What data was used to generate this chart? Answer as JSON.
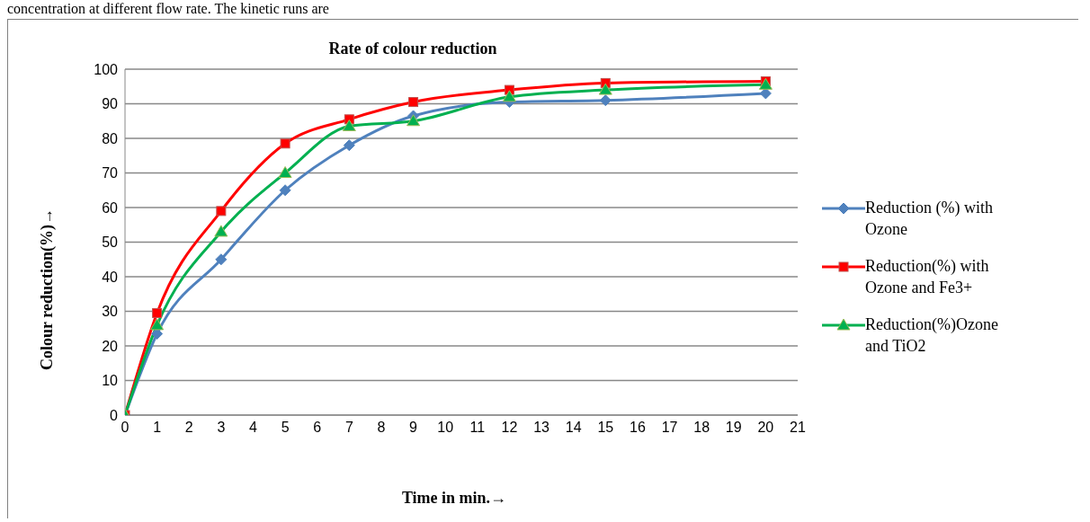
{
  "chart_data": {
    "type": "line",
    "title": "Rate of colour reduction",
    "xlabel": "Time in min.→",
    "ylabel": "Colour reduction(%)→",
    "annotations": [
      "concentration at different flow rate. The kinetic runs are"
    ],
    "x": [
      0,
      1,
      3,
      5,
      7,
      9,
      12,
      15,
      20
    ],
    "series": [
      {
        "name": "Reduction (%) with Ozone",
        "color": "#4f81bd",
        "marker": "diamond",
        "values": [
          0,
          23.5,
          45,
          65,
          78,
          86.5,
          90.5,
          91,
          93
        ]
      },
      {
        "name": "Reduction(%) with Ozone and Fe3+",
        "color": "#ff0000",
        "marker": "square",
        "values": [
          0,
          29.5,
          59,
          78.5,
          85.5,
          90.5,
          94,
          96,
          96.5
        ]
      },
      {
        "name": "Reduction(%)Ozone and  TiO2",
        "color": "#00b050",
        "marker": "triangle",
        "values": [
          0,
          26,
          53,
          70,
          83.5,
          85,
          92,
          94,
          95.5
        ]
      }
    ],
    "xlim": [
      0,
      21
    ],
    "xticks": [
      0,
      1,
      2,
      3,
      4,
      5,
      6,
      7,
      8,
      9,
      10,
      11,
      12,
      13,
      14,
      15,
      16,
      17,
      18,
      19,
      20,
      21
    ],
    "ylim": [
      0,
      100
    ],
    "yticks": [
      0,
      10,
      20,
      30,
      40,
      50,
      60,
      70,
      80,
      90,
      100
    ],
    "grid": "y",
    "legend": "right",
    "line_style": "solid"
  }
}
